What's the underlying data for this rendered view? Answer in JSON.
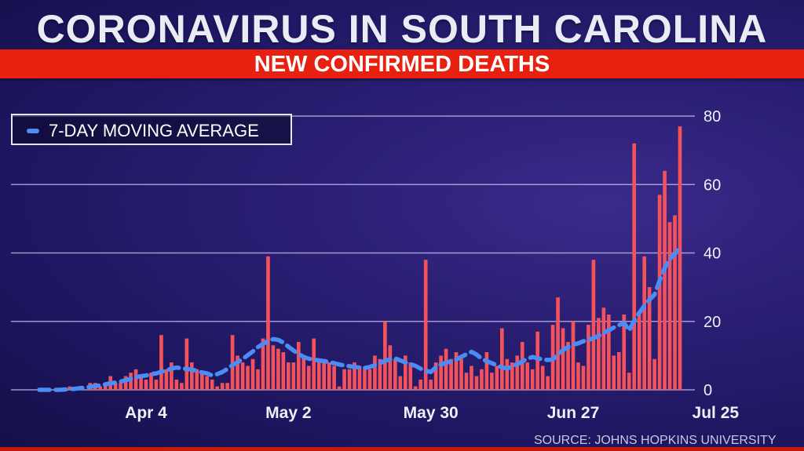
{
  "title": "CORONAVIRUS IN SOUTH CAROLINA",
  "subtitle": "NEW CONFIRMED DEATHS",
  "source": "SOURCE: JOHNS HOPKINS UNIVERSITY",
  "colors": {
    "bar": "#f4525a",
    "average": "#4b8cf5",
    "banner": "#e8200f",
    "grid": "#c9c4ee"
  },
  "chart_data": {
    "type": "bar",
    "title": "NEW CONFIRMED DEATHS",
    "xlabel": "",
    "ylabel": "",
    "ylim": [
      0,
      80
    ],
    "yticks": [
      0,
      20,
      40,
      60,
      80
    ],
    "x_start": "Mar 14",
    "x_end": "Jul 25",
    "xtick_labels": [
      {
        "label": "Apr 4",
        "day": 21
      },
      {
        "label": "May 2",
        "day": 49
      },
      {
        "label": "May 30",
        "day": 77
      },
      {
        "label": "Jun 27",
        "day": 105
      },
      {
        "label": "Jul 25",
        "day": 133
      }
    ],
    "legend": {
      "label": "7-DAY MOVING AVERAGE",
      "position": "top-left"
    },
    "grid": true,
    "series": [
      {
        "name": "New confirmed deaths",
        "type": "bar",
        "values": [
          0,
          0,
          0,
          0,
          0,
          0,
          1,
          0,
          1,
          0,
          2,
          2,
          1,
          2,
          4,
          2,
          2,
          4,
          5,
          6,
          4,
          3,
          5,
          3,
          16,
          6,
          8,
          3,
          2,
          15,
          8,
          6,
          5,
          4,
          3,
          1,
          2,
          2,
          16,
          10,
          8,
          7,
          9,
          6,
          15,
          39,
          13,
          12,
          11,
          8,
          8,
          14,
          10,
          7,
          15,
          8,
          9,
          8,
          7,
          1,
          6,
          6,
          8,
          7,
          6,
          6,
          10,
          9,
          20,
          13,
          9,
          4,
          10,
          8,
          1,
          3,
          38,
          3,
          8,
          10,
          12,
          9,
          11,
          9,
          5,
          7,
          4,
          6,
          11,
          5,
          7,
          18,
          9,
          8,
          10,
          14,
          8,
          6,
          17,
          7,
          4,
          19,
          27,
          18,
          14,
          20,
          8,
          7,
          19,
          38,
          21,
          24,
          22,
          10,
          11,
          22,
          5,
          72,
          22,
          39,
          30,
          9,
          57,
          64,
          49,
          51,
          77
        ]
      },
      {
        "name": "7-DAY MOVING AVERAGE",
        "type": "line",
        "values": [
          0,
          0,
          0,
          0,
          0,
          0.1,
          0.2,
          0.3,
          0.5,
          0.6,
          0.9,
          1.1,
          1.3,
          1.6,
          1.9,
          2.1,
          2.4,
          2.8,
          3.2,
          3.7,
          4,
          4.2,
          4.6,
          4.8,
          5.3,
          5.7,
          6.2,
          6.5,
          6.3,
          6.1,
          5.9,
          5.6,
          5.1,
          4.8,
          4.2,
          4.6,
          5.2,
          6.1,
          7.2,
          8.1,
          9,
          10.1,
          11.2,
          12.5,
          13.4,
          14.3,
          14.8,
          14.6,
          13.8,
          12.6,
          11.5,
          10.5,
          9.6,
          9.1,
          8.8,
          8.6,
          8.4,
          8.1,
          7.8,
          7.4,
          7.1,
          6.9,
          6.7,
          6.5,
          6.4,
          6.7,
          7.2,
          7.8,
          8.5,
          8.9,
          9.2,
          8.6,
          8,
          7.5,
          7,
          6.2,
          5.6,
          5.2,
          6.6,
          7.4,
          7.9,
          8.3,
          8.9,
          9.6,
          10.4,
          11.1,
          10.3,
          9.1,
          8.4,
          7.8,
          7.2,
          6.6,
          6.2,
          6.9,
          7.5,
          8.3,
          9.1,
          9.6,
          9.2,
          8.9,
          8.7,
          8.9,
          10.3,
          11.6,
          12.5,
          13.2,
          13.6,
          14.2,
          14.6,
          15.1,
          15.8,
          16.6,
          17.4,
          18.2,
          18.9,
          19.6,
          17.3,
          20.2,
          22.5,
          24.6,
          26.3,
          27.8,
          31.9,
          35.6,
          38.2,
          39.6,
          41.9
        ]
      }
    ]
  }
}
